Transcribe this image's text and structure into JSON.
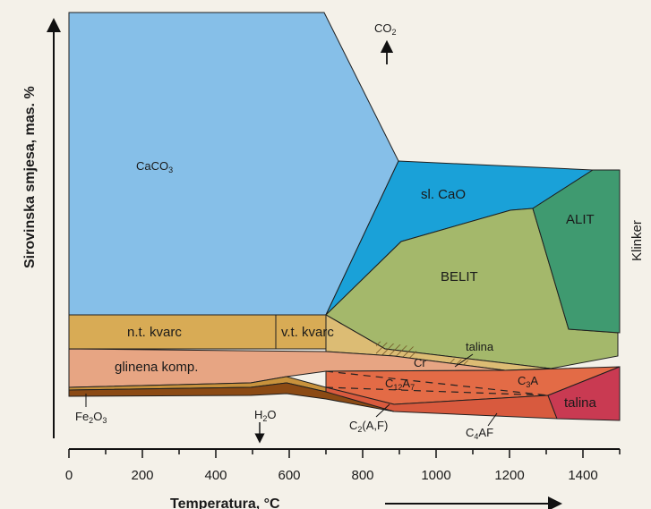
{
  "diagram": {
    "y_axis_title": "Sirovinska smjesa, mas. %",
    "x_axis_title": "Temperatura, °C",
    "right_label": "Klinker",
    "x_ticks": [
      "0",
      "200",
      "400",
      "600",
      "800",
      "1000",
      "1200",
      "1400"
    ],
    "regions": {
      "caco3": {
        "label": "CaCO",
        "sub": "3",
        "color": "#86bfe8"
      },
      "slcao": {
        "label": "sl. CaO",
        "color": "#1aa1d8"
      },
      "belit": {
        "label": "BELIT",
        "color": "#a4b86b"
      },
      "alit": {
        "label": "ALIT",
        "color": "#3f9a70"
      },
      "ntkvarc": {
        "label": "n.t. kvarc",
        "color": "#d8ab55"
      },
      "vtkvarc": {
        "label": "v.t. kvarc",
        "color": "#d8ab55"
      },
      "glinena": {
        "label": "glinena komp.",
        "color": "#e7a583"
      },
      "talina_mid": {
        "label": "talina"
      },
      "cr": {
        "label": "Cr"
      },
      "c12a7": {
        "label": "C",
        "sub": "12",
        "label2": "A",
        "sub2": "7",
        "color": "#e36b46"
      },
      "c3a": {
        "label": "C",
        "sub": "3",
        "label2": "A"
      },
      "talina_right": {
        "label": "talina",
        "color": "#c93a52"
      },
      "fe2o3": {
        "label": "Fe",
        "sub": "2",
        "label2": "O",
        "sub2": "3",
        "color": "#8b4a14"
      }
    },
    "annotations": {
      "co2": {
        "label": "CO",
        "sub": "2"
      },
      "h2o": {
        "label": "H",
        "sub": "2",
        "label2": "O"
      },
      "c2af": {
        "label": "C",
        "sub": "2",
        "label2": "(A,F)"
      },
      "c4af": {
        "label": "C",
        "sub": "4",
        "label2": "AF"
      }
    }
  }
}
